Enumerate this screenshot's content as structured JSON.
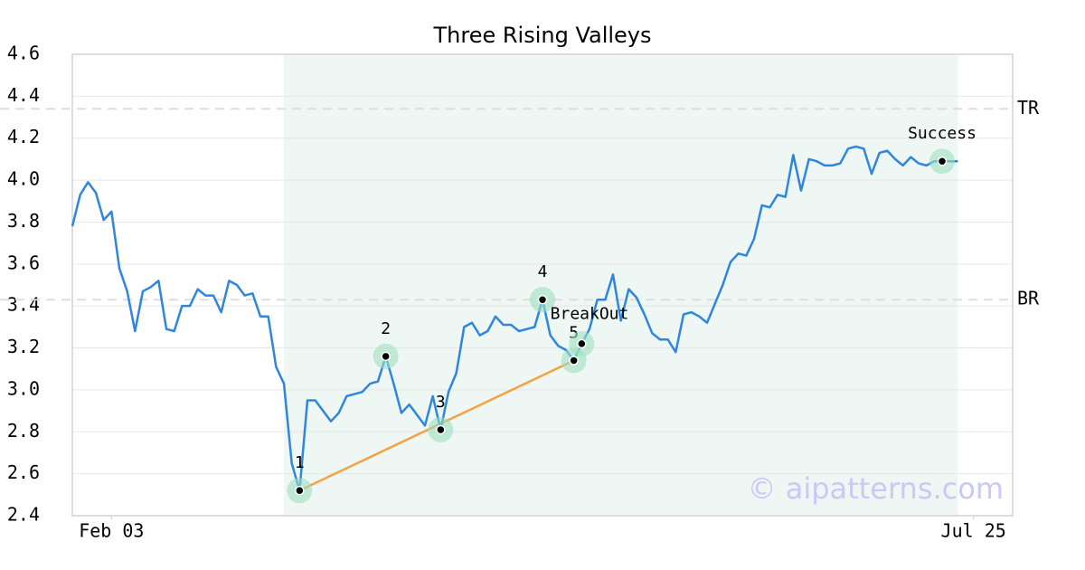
{
  "chart_data": {
    "type": "line",
    "title": "Three Rising Valleys",
    "x": [
      0,
      1,
      2,
      3,
      4,
      5,
      6,
      7,
      8,
      9,
      10,
      11,
      12,
      13,
      14,
      15,
      16,
      17,
      18,
      19,
      20,
      21,
      22,
      23,
      24,
      25,
      26,
      27,
      28,
      29,
      30,
      31,
      32,
      33,
      34,
      35,
      36,
      37,
      38,
      39,
      40,
      41,
      42,
      43,
      44,
      45,
      46,
      47,
      48,
      49,
      50,
      51,
      52,
      53,
      54,
      55,
      56,
      57,
      58,
      59,
      60,
      61,
      62,
      63,
      64,
      65,
      66,
      67,
      68,
      69,
      70,
      71,
      72,
      73,
      74,
      75,
      76,
      77,
      78,
      79,
      80,
      81,
      82,
      83,
      84,
      85,
      86,
      87,
      88,
      89,
      90,
      91,
      92,
      93,
      94,
      95,
      96,
      97,
      98,
      99,
      100,
      101,
      102,
      103,
      104,
      105,
      106,
      107,
      108,
      109,
      110,
      111,
      112,
      113
    ],
    "series": [
      {
        "color": "#2e86de",
        "values": [
          3.78,
          3.93,
          3.99,
          3.94,
          3.81,
          3.85,
          3.58,
          3.47,
          3.28,
          3.47,
          3.49,
          3.52,
          3.29,
          3.28,
          3.4,
          3.4,
          3.48,
          3.45,
          3.45,
          3.37,
          3.52,
          3.5,
          3.45,
          3.46,
          3.35,
          3.35,
          3.11,
          3.03,
          2.65,
          2.52,
          2.95,
          2.95,
          2.9,
          2.85,
          2.89,
          2.97,
          2.98,
          2.99,
          3.03,
          3.04,
          3.16,
          3.03,
          2.89,
          2.93,
          2.88,
          2.83,
          2.97,
          2.81,
          2.99,
          3.08,
          3.3,
          3.32,
          3.26,
          3.28,
          3.35,
          3.31,
          3.31,
          3.28,
          3.29,
          3.3,
          3.43,
          3.26,
          3.21,
          3.19,
          3.14,
          3.22,
          3.29,
          3.43,
          3.43,
          3.55,
          3.33,
          3.48,
          3.44,
          3.36,
          3.27,
          3.24,
          3.24,
          3.18,
          3.36,
          3.37,
          3.35,
          3.32,
          3.41,
          3.5,
          3.61,
          3.65,
          3.64,
          3.72,
          3.88,
          3.87,
          3.93,
          3.92,
          4.12,
          3.95,
          4.1,
          4.09,
          4.07,
          4.07,
          4.08,
          4.15,
          4.16,
          4.15,
          4.03,
          4.13,
          4.14,
          4.1,
          4.07,
          4.11,
          4.08,
          4.07,
          4.09,
          4.09,
          4.09,
          4.09
        ]
      }
    ],
    "xlim": [
      0,
      120
    ],
    "xticks": [
      {
        "value": 5,
        "label": "Feb 03"
      },
      {
        "value": 115,
        "label": "Jul 25"
      }
    ],
    "ylim": [
      2.4,
      4.6
    ],
    "yticks": [
      2.4,
      2.6,
      2.8,
      {
        "value": 3.0,
        "label": "3.0"
      },
      3.2,
      3.4,
      3.6,
      3.8,
      {
        "value": 4.0,
        "label": "4.0"
      },
      4.2,
      4.4,
      4.6
    ],
    "grid": true,
    "highlight_range": [
      27,
      113
    ],
    "highlight_color": "#eef7f3",
    "levels": [
      {
        "label": "TR",
        "value": 4.34
      },
      {
        "label": "BR",
        "value": 3.43
      }
    ],
    "trendline": {
      "color": "#f5a142",
      "x": [
        29,
        64
      ],
      "values": [
        2.52,
        3.14
      ]
    },
    "pattern_points": [
      {
        "label": "1",
        "x": 29,
        "value": 2.52
      },
      {
        "label": "2",
        "x": 40,
        "value": 3.16
      },
      {
        "label": "3",
        "x": 47,
        "value": 2.81
      },
      {
        "label": "4",
        "x": 60,
        "value": 3.43
      },
      {
        "label": "5",
        "x": 64,
        "value": 3.14
      },
      {
        "x": 65,
        "value": 3.22
      },
      {
        "label": "Success",
        "x": 111,
        "value": 4.09
      }
    ],
    "annotations": [
      {
        "text": "BreakOut",
        "x": 66,
        "value": 3.36
      }
    ],
    "watermark": "© aipatterns.com"
  }
}
